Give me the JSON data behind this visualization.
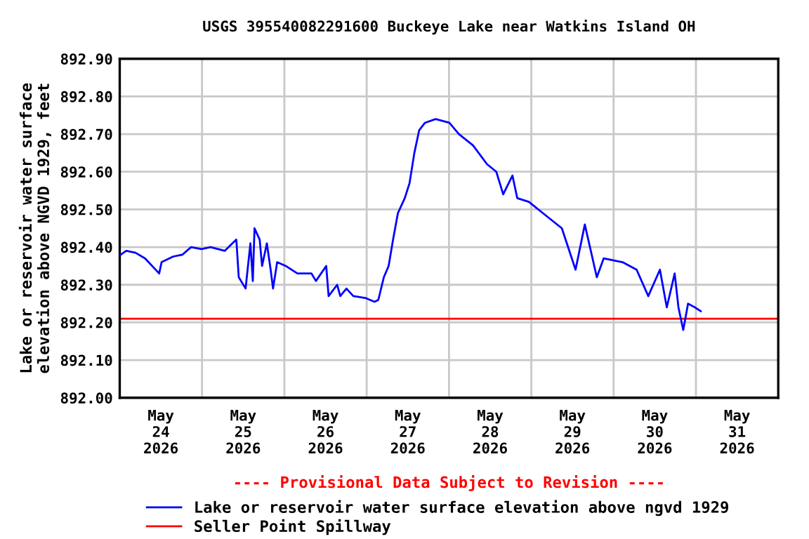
{
  "chart_data": {
    "type": "line",
    "title": "USGS 395540082291600 Buckeye Lake near Watkins Island OH",
    "ylabel": "Lake or reservoir water surface\nelevation above NGVD 1929, feet",
    "annotations": [
      "---- Provisional Data Subject to Revision ----"
    ],
    "x": [
      "2026-05-24T00:18",
      "2026-05-24T01:54",
      "2026-05-24T04:36",
      "2026-05-24T07:24",
      "2026-05-24T11:30",
      "2026-05-24T12:12",
      "2026-05-24T15:36",
      "2026-05-24T18:18",
      "2026-05-24T20:48",
      "2026-05-24T23:48",
      "2026-05-25T02:30",
      "2026-05-25T06:36",
      "2026-05-25T10:00",
      "2026-05-25T10:42",
      "2026-05-25T12:42",
      "2026-05-25T14:06",
      "2026-05-25T14:48",
      "2026-05-25T15:18",
      "2026-05-25T16:48",
      "2026-05-25T17:30",
      "2026-05-25T18:54",
      "2026-05-25T20:00",
      "2026-05-25T20:42",
      "2026-05-25T21:54",
      "2026-05-26T00:24",
      "2026-05-26T03:48",
      "2026-05-26T07:54",
      "2026-05-26T09:12",
      "2026-05-26T12:12",
      "2026-05-26T12:54",
      "2026-05-26T15:24",
      "2026-05-26T16:18",
      "2026-05-26T18:06",
      "2026-05-26T20:06",
      "2026-05-26T23:36",
      "2026-05-27T02:18",
      "2026-05-27T03:24",
      "2026-05-27T05:00",
      "2026-05-27T06:24",
      "2026-05-27T07:42",
      "2026-05-27T09:06",
      "2026-05-27T11:06",
      "2026-05-27T12:30",
      "2026-05-27T13:12",
      "2026-05-27T13:54",
      "2026-05-27T15:18",
      "2026-05-27T17:00",
      "2026-05-27T20:06",
      "2026-05-28T00:06",
      "2026-05-28T02:54",
      "2026-05-28T07:00",
      "2026-05-28T11:06",
      "2026-05-28T13:48",
      "2026-05-28T15:48",
      "2026-05-28T18:30",
      "2026-05-28T19:54",
      "2026-05-28T23:18",
      "2026-05-29T03:24",
      "2026-05-29T08:54",
      "2026-05-29T12:54",
      "2026-05-29T15:36",
      "2026-05-29T19:06",
      "2026-05-29T21:06",
      "2026-05-30T02:36",
      "2026-05-30T06:42",
      "2026-05-30T10:06",
      "2026-05-30T13:30",
      "2026-05-30T15:30",
      "2026-05-30T17:48",
      "2026-05-30T18:54",
      "2026-05-30T20:18",
      "2026-05-30T21:42",
      "2026-05-30T23:42",
      "2026-05-31T01:24"
    ],
    "series": [
      {
        "name": "Lake or reservoir water surface elevation above ngvd 1929",
        "color": "#0000ff",
        "values": [
          892.38,
          892.39,
          892.385,
          892.37,
          892.33,
          892.36,
          892.375,
          892.38,
          892.4,
          892.395,
          892.4,
          892.39,
          892.42,
          892.32,
          892.29,
          892.41,
          892.31,
          892.45,
          892.42,
          892.35,
          892.41,
          892.34,
          892.29,
          892.36,
          892.35,
          892.33,
          892.33,
          892.31,
          892.35,
          892.27,
          892.3,
          892.27,
          892.29,
          892.27,
          892.265,
          892.255,
          892.26,
          892.32,
          892.35,
          892.42,
          892.49,
          892.53,
          892.57,
          892.61,
          892.65,
          892.71,
          892.73,
          892.74,
          892.73,
          892.7,
          892.67,
          892.62,
          892.6,
          892.54,
          892.59,
          892.53,
          892.52,
          892.49,
          892.45,
          892.34,
          892.46,
          892.32,
          892.37,
          892.36,
          892.34,
          892.27,
          892.34,
          892.24,
          892.33,
          892.24,
          892.18,
          892.25,
          892.24,
          892.23
        ]
      }
    ],
    "ref_lines": [
      {
        "axis": "y",
        "value": 892.21,
        "label": "Seller Point Spillway",
        "color": "#ff0000"
      }
    ],
    "xlim": [
      "2026-05-24T00:00",
      "2026-06-01T00:00"
    ],
    "xticks": [
      {
        "value": "2026-05-24T12:00",
        "label": "May\n24\n2026"
      },
      {
        "value": "2026-05-25T12:00",
        "label": "May\n25\n2026"
      },
      {
        "value": "2026-05-26T12:00",
        "label": "May\n26\n2026"
      },
      {
        "value": "2026-05-27T12:00",
        "label": "May\n27\n2026"
      },
      {
        "value": "2026-05-28T12:00",
        "label": "May\n28\n2026"
      },
      {
        "value": "2026-05-29T12:00",
        "label": "May\n29\n2026"
      },
      {
        "value": "2026-05-30T12:00",
        "label": "May\n30\n2026"
      },
      {
        "value": "2026-05-31T12:00",
        "label": "May\n31\n2026"
      },
      {
        "value": "2026-05-25T00:00",
        "label": null
      },
      {
        "value": "2026-05-26T00:00",
        "label": null
      },
      {
        "value": "2026-05-27T00:00",
        "label": null
      },
      {
        "value": "2026-05-28T00:00",
        "label": null
      },
      {
        "value": "2026-05-29T00:00",
        "label": null
      },
      {
        "value": "2026-05-30T00:00",
        "label": null
      },
      {
        "value": "2026-05-31T00:00",
        "label": null
      }
    ],
    "ylim": [
      892.0,
      892.9
    ],
    "yticks": [
      {
        "value": 892.0,
        "label": "892.00"
      },
      {
        "value": 892.1,
        "label": "892.10"
      },
      {
        "value": 892.2,
        "label": "892.20"
      },
      {
        "value": 892.3,
        "label": "892.30"
      },
      {
        "value": 892.4,
        "label": "892.40"
      },
      {
        "value": 892.5,
        "label": "892.50"
      },
      {
        "value": 892.6,
        "label": "892.60"
      },
      {
        "value": 892.7,
        "label": "892.70"
      },
      {
        "value": 892.8,
        "label": "892.80"
      },
      {
        "value": 892.9,
        "label": "892.90"
      }
    ],
    "grid": true,
    "legend": "bottom",
    "marker": "none",
    "line_style": "solid"
  }
}
